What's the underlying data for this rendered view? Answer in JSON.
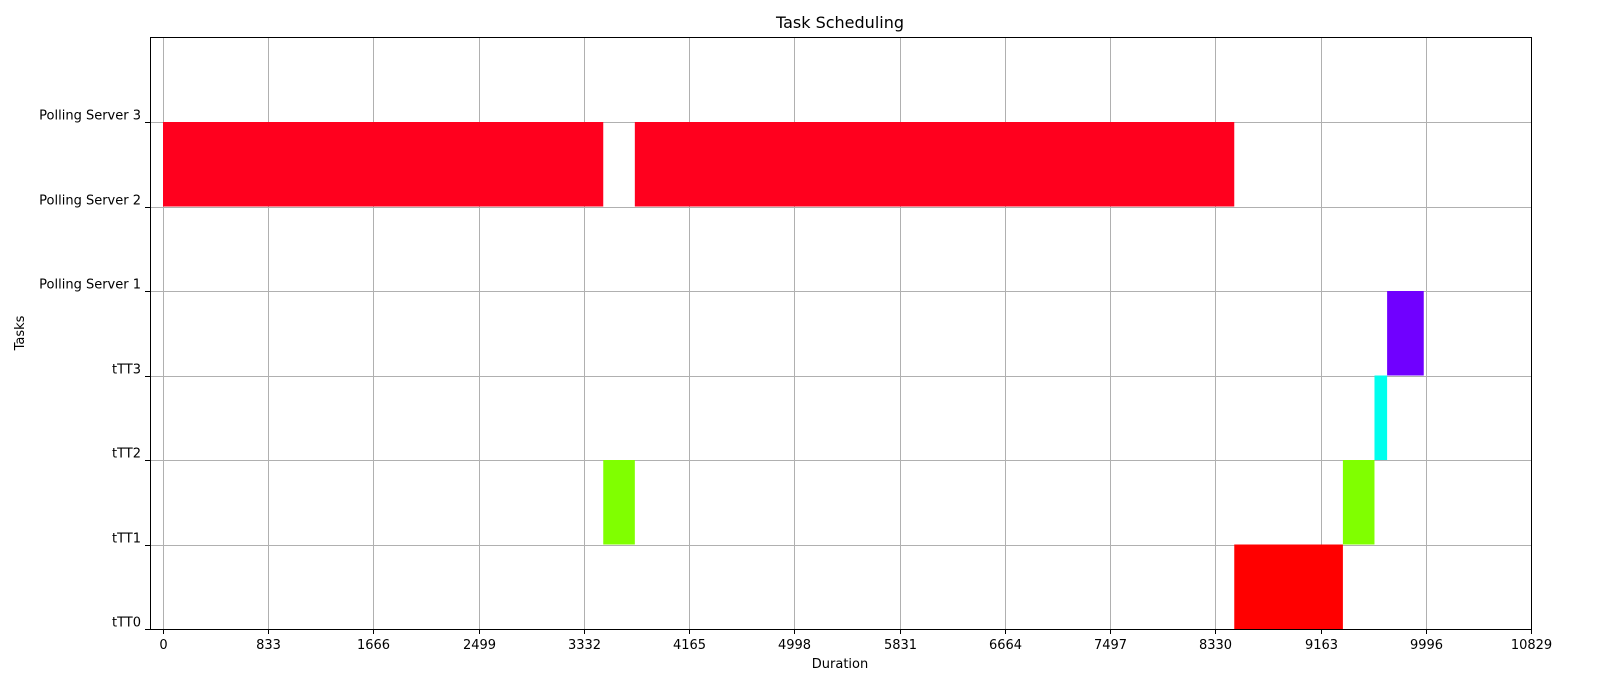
{
  "chart_data": {
    "type": "gantt",
    "title": "Task Scheduling",
    "xlabel": "Duration",
    "ylabel": "Tasks",
    "xlim": [
      -150,
      10829
    ],
    "ylim": [
      0,
      7
    ],
    "grid": true,
    "x_ticks": [
      0,
      833,
      1666,
      2499,
      3332,
      4165,
      4998,
      5831,
      6664,
      7497,
      8330,
      9163,
      9996,
      10829
    ],
    "y_ticks": [
      "tTT0",
      "tTT1",
      "tTT2",
      "tTT3",
      "Polling Server 1",
      "Polling Server 2",
      "Polling Server 3"
    ],
    "bars": [
      {
        "row_start": 5,
        "row_end": 6,
        "start": 0,
        "end": 3485,
        "color": "#ff001e"
      },
      {
        "row_start": 5,
        "row_end": 6,
        "start": 3735,
        "end": 8480,
        "color": "#ff001e"
      },
      {
        "row_start": 1,
        "row_end": 2,
        "start": 3485,
        "end": 3735,
        "color": "#80ff00"
      },
      {
        "row_start": 0,
        "row_end": 1,
        "start": 8480,
        "end": 9340,
        "color": "#ff0000"
      },
      {
        "row_start": 1,
        "row_end": 2,
        "start": 9340,
        "end": 9590,
        "color": "#80ff00"
      },
      {
        "row_start": 2,
        "row_end": 3,
        "start": 9590,
        "end": 9690,
        "color": "#00ffee"
      },
      {
        "row_start": 3,
        "row_end": 4,
        "start": 9690,
        "end": 9980,
        "color": "#7000ff"
      }
    ]
  }
}
